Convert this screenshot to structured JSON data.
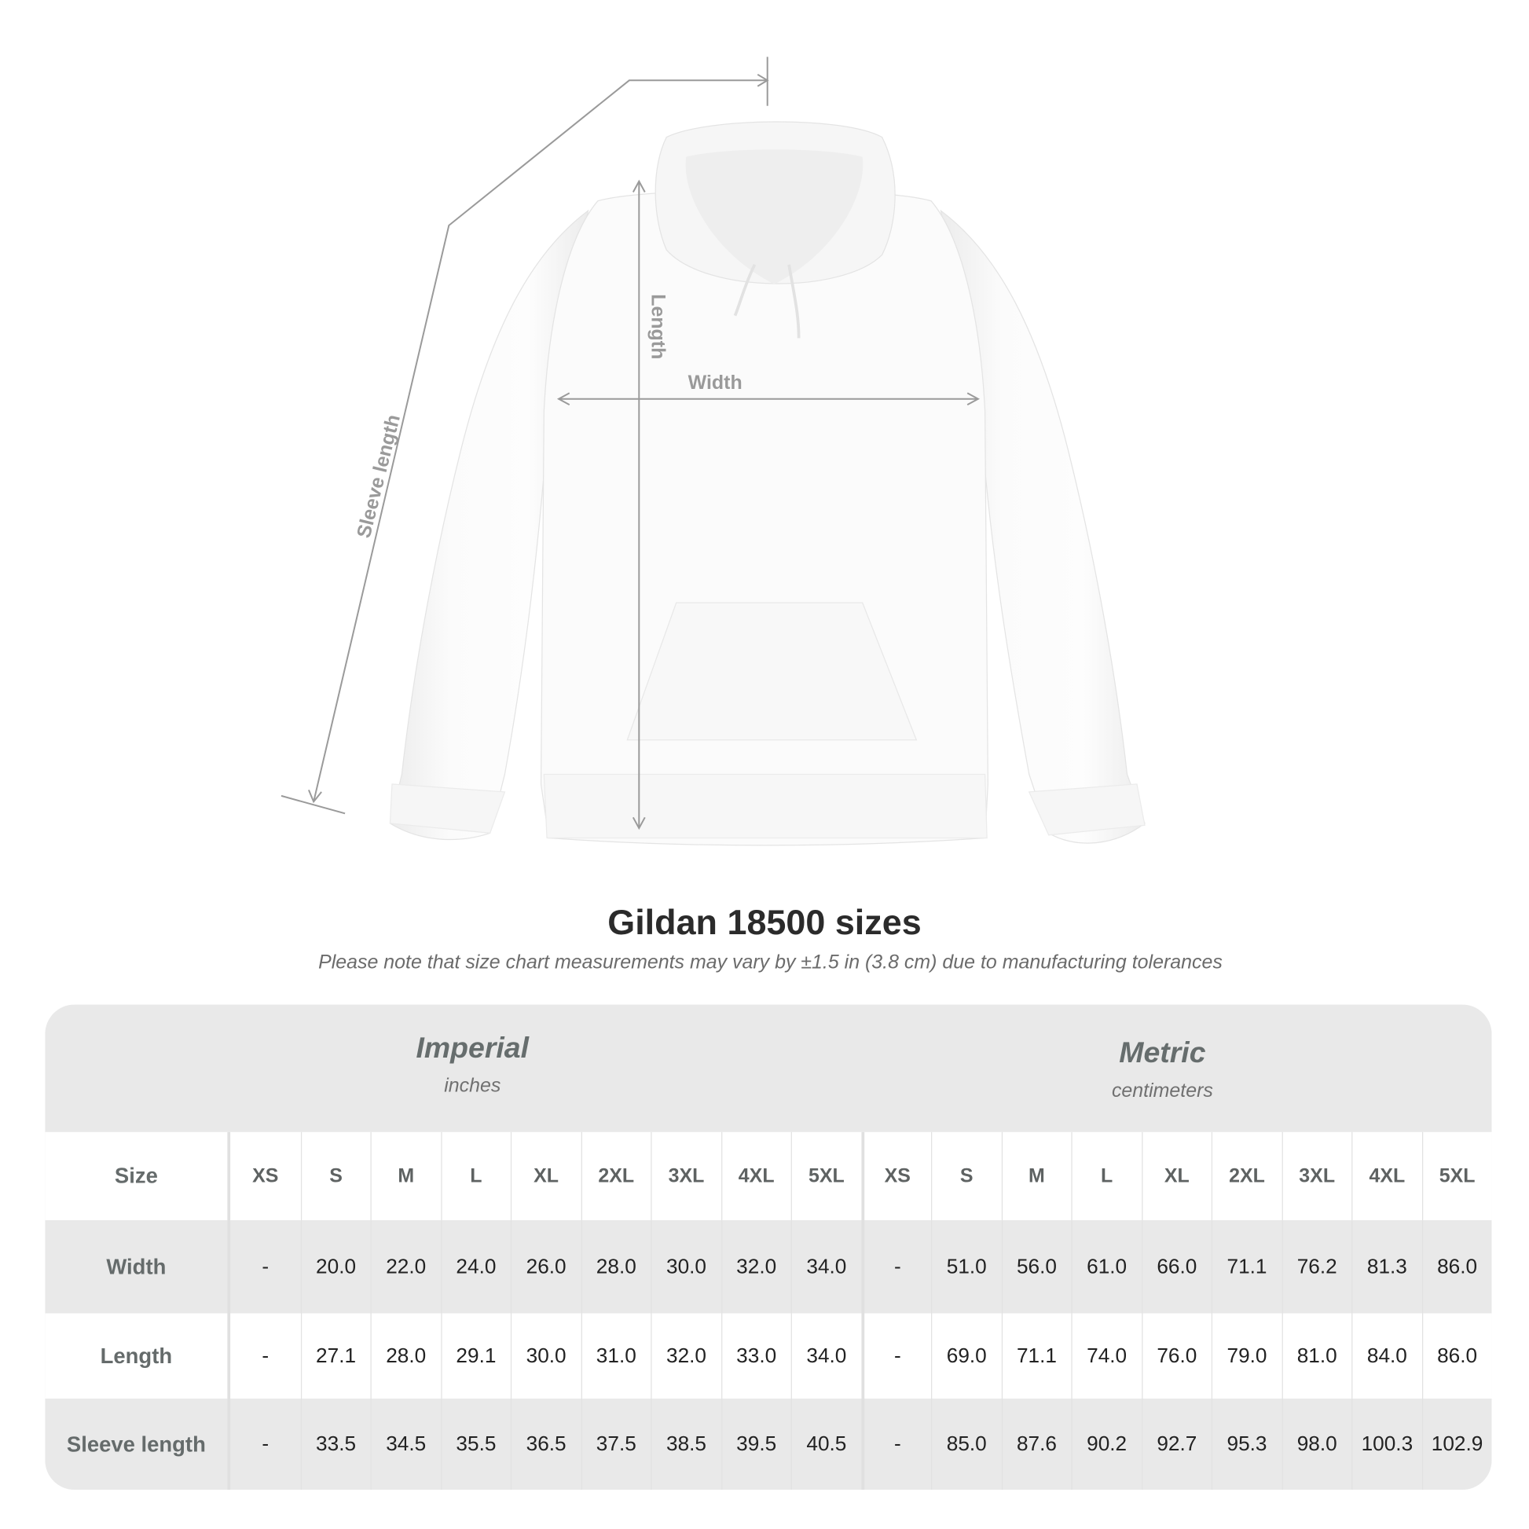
{
  "diagram": {
    "labels": {
      "length": "Length",
      "width": "Width",
      "sleeve": "Sleeve length"
    },
    "line_color": "#9a9a9a"
  },
  "title": "Gildan 18500 sizes",
  "note": "Please note that size chart measurements may vary by ±1.5 in (3.8 cm) due to manufacturing tolerances",
  "table": {
    "imperial": {
      "name": "Imperial",
      "unit": "inches"
    },
    "metric": {
      "name": "Metric",
      "unit": "centimeters"
    },
    "size_label": "Size",
    "sizes": [
      "XS",
      "S",
      "M",
      "L",
      "XL",
      "2XL",
      "3XL",
      "4XL",
      "5XL",
      "XS",
      "S",
      "M",
      "L",
      "XL",
      "2XL",
      "3XL",
      "4XL",
      "5XL"
    ],
    "rows": [
      {
        "label": "Width",
        "values": [
          "-",
          "20.0",
          "22.0",
          "24.0",
          "26.0",
          "28.0",
          "30.0",
          "32.0",
          "34.0",
          "-",
          "51.0",
          "56.0",
          "61.0",
          "66.0",
          "71.1",
          "76.2",
          "81.3",
          "86.0"
        ]
      },
      {
        "label": "Length",
        "values": [
          "-",
          "27.1",
          "28.0",
          "29.1",
          "30.0",
          "31.0",
          "32.0",
          "33.0",
          "34.0",
          "-",
          "69.0",
          "71.1",
          "74.0",
          "76.0",
          "79.0",
          "81.0",
          "84.0",
          "86.0"
        ]
      },
      {
        "label": "Sleeve length",
        "values": [
          "-",
          "33.5",
          "34.5",
          "35.5",
          "36.5",
          "37.5",
          "38.5",
          "39.5",
          "40.5",
          "-",
          "85.0",
          "87.6",
          "90.2",
          "92.7",
          "95.3",
          "98.0",
          "100.3",
          "102.9"
        ]
      }
    ],
    "colors": {
      "band": "#e9e9e9",
      "label": "#656b6b"
    }
  }
}
